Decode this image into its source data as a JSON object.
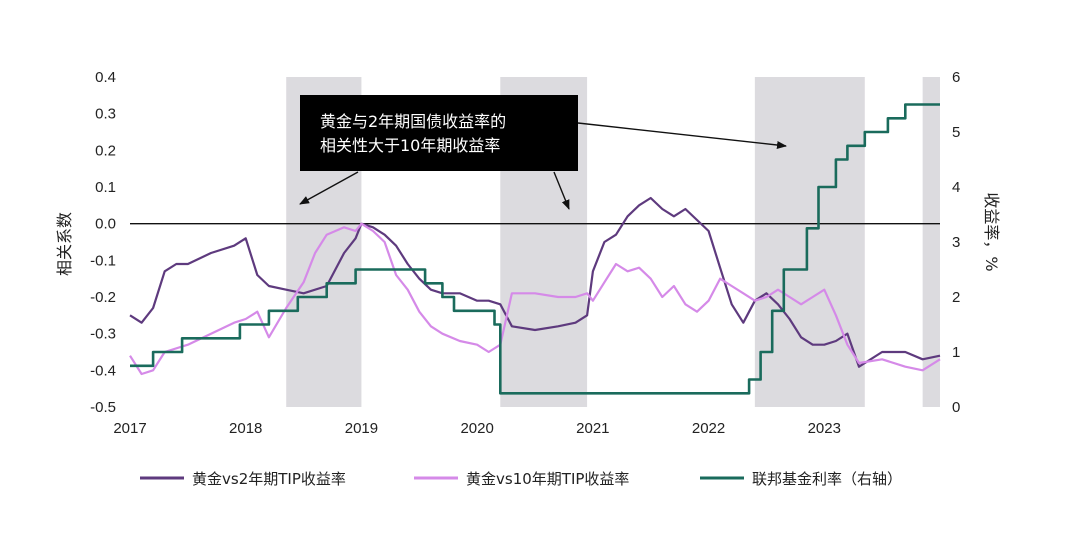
{
  "chart_data": {
    "type": "line",
    "ylabel_left": "相关系数",
    "ylabel_right": "收益率，%",
    "ylim_left": [
      -0.5,
      0.4
    ],
    "ylim_right": [
      0,
      6
    ],
    "xlim": [
      2017.0,
      2024.0
    ],
    "xticks": [
      "2017",
      "2018",
      "2019",
      "2020",
      "2021",
      "2022",
      "2023"
    ],
    "yticks_left": [
      "0.4",
      "0.3",
      "0.2",
      "0.1",
      "0.0",
      "-0.1",
      "-0.2",
      "-0.3",
      "-0.4",
      "-0.5"
    ],
    "yticks_right": [
      "6",
      "5",
      "4",
      "3",
      "2",
      "1",
      "0"
    ],
    "shaded_periods": [
      [
        2018.35,
        2019.0
      ],
      [
        2020.2,
        2020.95
      ],
      [
        2022.4,
        2023.35
      ],
      [
        2023.85,
        2024.0
      ]
    ],
    "annotation": {
      "lines": [
        "黄金与2年期国债收益率的",
        "相关性大于10年期收益率"
      ]
    },
    "series": [
      {
        "name": "黄金vs2年期TIP收益率",
        "color": "#5e3a7e",
        "axis": "left",
        "x": [
          2017.0,
          2017.1,
          2017.2,
          2017.3,
          2017.4,
          2017.5,
          2017.7,
          2017.9,
          2018.0,
          2018.1,
          2018.2,
          2018.35,
          2018.5,
          2018.7,
          2018.85,
          2018.95,
          2019.0,
          2019.1,
          2019.2,
          2019.3,
          2019.4,
          2019.5,
          2019.6,
          2019.7,
          2019.85,
          2020.0,
          2020.1,
          2020.2,
          2020.3,
          2020.5,
          2020.7,
          2020.85,
          2020.95,
          2021.0,
          2021.1,
          2021.2,
          2021.3,
          2021.4,
          2021.5,
          2021.6,
          2021.7,
          2021.8,
          2021.9,
          2022.0,
          2022.1,
          2022.2,
          2022.3,
          2022.4,
          2022.5,
          2022.6,
          2022.7,
          2022.8,
          2022.9,
          2023.0,
          2023.1,
          2023.2,
          2023.3,
          2023.5,
          2023.7,
          2023.85,
          2024.0
        ],
        "values": [
          -0.25,
          -0.27,
          -0.23,
          -0.13,
          -0.11,
          -0.11,
          -0.08,
          -0.06,
          -0.04,
          -0.14,
          -0.17,
          -0.18,
          -0.19,
          -0.17,
          -0.08,
          -0.04,
          0.0,
          -0.01,
          -0.03,
          -0.06,
          -0.11,
          -0.15,
          -0.18,
          -0.19,
          -0.19,
          -0.21,
          -0.21,
          -0.22,
          -0.28,
          -0.29,
          -0.28,
          -0.27,
          -0.25,
          -0.13,
          -0.05,
          -0.03,
          0.02,
          0.05,
          0.07,
          0.04,
          0.02,
          0.04,
          0.01,
          -0.02,
          -0.12,
          -0.22,
          -0.27,
          -0.21,
          -0.19,
          -0.22,
          -0.26,
          -0.31,
          -0.33,
          -0.33,
          -0.32,
          -0.3,
          -0.39,
          -0.35,
          -0.35,
          -0.37,
          -0.36
        ]
      },
      {
        "name": "黄金vs10年期TIP收益率",
        "color": "#d58ae8",
        "axis": "left",
        "x": [
          2017.0,
          2017.1,
          2017.2,
          2017.3,
          2017.5,
          2017.7,
          2017.9,
          2018.0,
          2018.1,
          2018.2,
          2018.35,
          2018.5,
          2018.6,
          2018.7,
          2018.85,
          2018.95,
          2019.0,
          2019.1,
          2019.2,
          2019.3,
          2019.4,
          2019.5,
          2019.6,
          2019.7,
          2019.85,
          2020.0,
          2020.1,
          2020.2,
          2020.3,
          2020.5,
          2020.7,
          2020.85,
          2020.95,
          2021.0,
          2021.1,
          2021.2,
          2021.3,
          2021.4,
          2021.5,
          2021.6,
          2021.7,
          2021.8,
          2021.9,
          2022.0,
          2022.1,
          2022.2,
          2022.3,
          2022.4,
          2022.5,
          2022.6,
          2022.7,
          2022.8,
          2022.9,
          2023.0,
          2023.1,
          2023.2,
          2023.3,
          2023.5,
          2023.7,
          2023.85,
          2024.0
        ],
        "values": [
          -0.36,
          -0.41,
          -0.4,
          -0.35,
          -0.33,
          -0.3,
          -0.27,
          -0.26,
          -0.24,
          -0.31,
          -0.23,
          -0.16,
          -0.08,
          -0.03,
          -0.01,
          -0.02,
          0.0,
          -0.02,
          -0.05,
          -0.14,
          -0.18,
          -0.24,
          -0.28,
          -0.3,
          -0.32,
          -0.33,
          -0.35,
          -0.33,
          -0.19,
          -0.19,
          -0.2,
          -0.2,
          -0.19,
          -0.21,
          -0.16,
          -0.11,
          -0.13,
          -0.12,
          -0.15,
          -0.2,
          -0.17,
          -0.22,
          -0.24,
          -0.21,
          -0.15,
          -0.17,
          -0.19,
          -0.21,
          -0.2,
          -0.18,
          -0.2,
          -0.22,
          -0.2,
          -0.18,
          -0.25,
          -0.33,
          -0.38,
          -0.37,
          -0.39,
          -0.4,
          -0.37
        ]
      },
      {
        "name": "联邦基金利率（右轴）",
        "color": "#1a6b5c",
        "axis": "right",
        "x": [
          2017.0,
          2017.2,
          2017.45,
          2017.95,
          2018.2,
          2018.45,
          2018.7,
          2018.95,
          2019.55,
          2019.7,
          2019.8,
          2020.15,
          2020.2,
          2022.2,
          2022.35,
          2022.45,
          2022.55,
          2022.65,
          2022.85,
          2022.95,
          2023.1,
          2023.2,
          2023.35,
          2023.55,
          2023.7,
          2024.0
        ],
        "values": [
          0.75,
          1.0,
          1.25,
          1.5,
          1.75,
          2.0,
          2.25,
          2.5,
          2.25,
          2.0,
          1.75,
          1.5,
          0.25,
          0.25,
          0.5,
          1.0,
          1.75,
          2.5,
          3.25,
          4.0,
          4.5,
          4.75,
          5.0,
          5.25,
          5.5,
          5.5
        ]
      }
    ]
  }
}
